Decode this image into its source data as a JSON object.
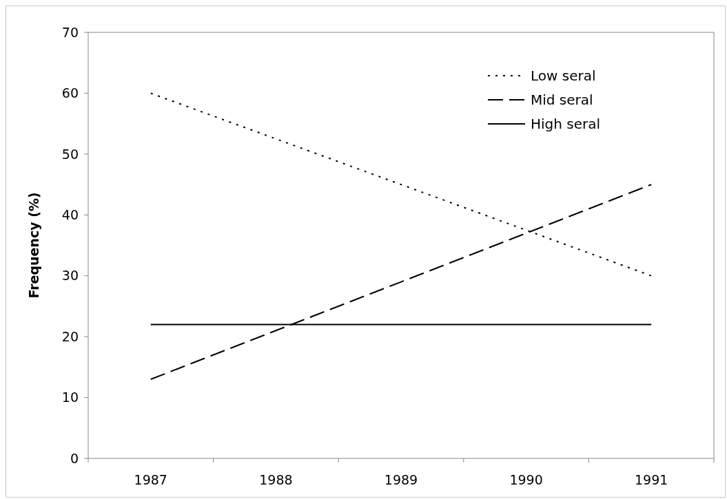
{
  "chart_data": {
    "type": "line",
    "ylabel": "Frequency (%)",
    "categories": [
      "1987",
      "1988",
      "1989",
      "1990",
      "1991"
    ],
    "series": [
      {
        "name": "Low seral",
        "color": "#000000",
        "line_style": "dotted",
        "values": [
          60,
          52.5,
          45,
          37.5,
          30
        ]
      },
      {
        "name": "Mid seral",
        "color": "#000000",
        "line_style": "dashed",
        "values": [
          13,
          21,
          29,
          37,
          45
        ]
      },
      {
        "name": "High seral",
        "color": "#000000",
        "line_style": "solid",
        "values": [
          22,
          22,
          22,
          22,
          22
        ]
      }
    ],
    "ylim": [
      0,
      70
    ],
    "yticks": [
      0,
      10,
      20,
      30,
      40,
      50,
      60,
      70
    ],
    "grid": false,
    "legend": "top right",
    "marker": "none"
  }
}
